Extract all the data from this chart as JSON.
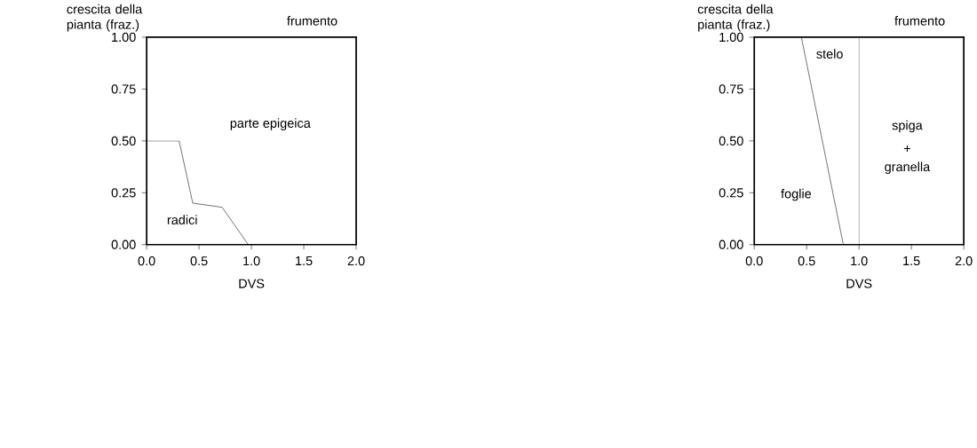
{
  "chart_data": [
    {
      "type": "line",
      "title": "frumento",
      "xlabel": "DVS",
      "ylabel": "crescita della pianta (fraz.)",
      "series": [
        {
          "color": "#000000",
          "x": [
            0,
            0.31,
            0.44,
            0.72,
            0.97
          ],
          "values": [
            0.5,
            0.5,
            0.2,
            0.18,
            0
          ]
        }
      ],
      "xlim": [
        0,
        2
      ],
      "ylim": [
        0,
        1
      ],
      "xticks": [
        {
          "value": 0,
          "label": "0.0"
        },
        {
          "value": 0.5,
          "label": "0.5"
        },
        {
          "value": 1,
          "label": "1.0"
        },
        {
          "value": 1.5,
          "label": "1.5"
        },
        {
          "value": 2,
          "label": "2.0"
        }
      ],
      "yticks": [
        {
          "value": 0,
          "label": "0.00"
        },
        {
          "value": 0.25,
          "label": "0.25"
        },
        {
          "value": 0.5,
          "label": "0.50"
        },
        {
          "value": 0.75,
          "label": "0.75"
        },
        {
          "value": 1,
          "label": "1.00"
        }
      ],
      "annotations": [
        "parte epigeica",
        "radici"
      ],
      "grid": false
    },
    {
      "type": "line",
      "title": "frumento",
      "xlabel": "DVS",
      "ylabel": "crescita della pianta (fraz.)",
      "series": [
        {
          "color": "#000000",
          "x": [
            0.45,
            0.85
          ],
          "values": [
            1,
            0
          ]
        }
      ],
      "xlim": [
        0,
        2
      ],
      "ylim": [
        0,
        1
      ],
      "xticks": [
        {
          "value": 0,
          "label": "0.0"
        },
        {
          "value": 0.5,
          "label": "0.5"
        },
        {
          "value": 1,
          "label": "1.0"
        },
        {
          "value": 1.5,
          "label": "1.5"
        },
        {
          "value": 2,
          "label": "2.0"
        }
      ],
      "yticks": [
        {
          "value": 0,
          "label": "0.00"
        },
        {
          "value": 0.25,
          "label": "0.25"
        },
        {
          "value": 0.5,
          "label": "0.50"
        },
        {
          "value": 0.75,
          "label": "0.75"
        },
        {
          "value": 1,
          "label": "1.00"
        }
      ],
      "ref_lines": [
        {
          "axis": "x",
          "value": 1,
          "color": "#555555"
        }
      ],
      "annotations": [
        "stelo",
        "foglie",
        "spiga",
        "+",
        "granella"
      ],
      "grid": false
    }
  ]
}
